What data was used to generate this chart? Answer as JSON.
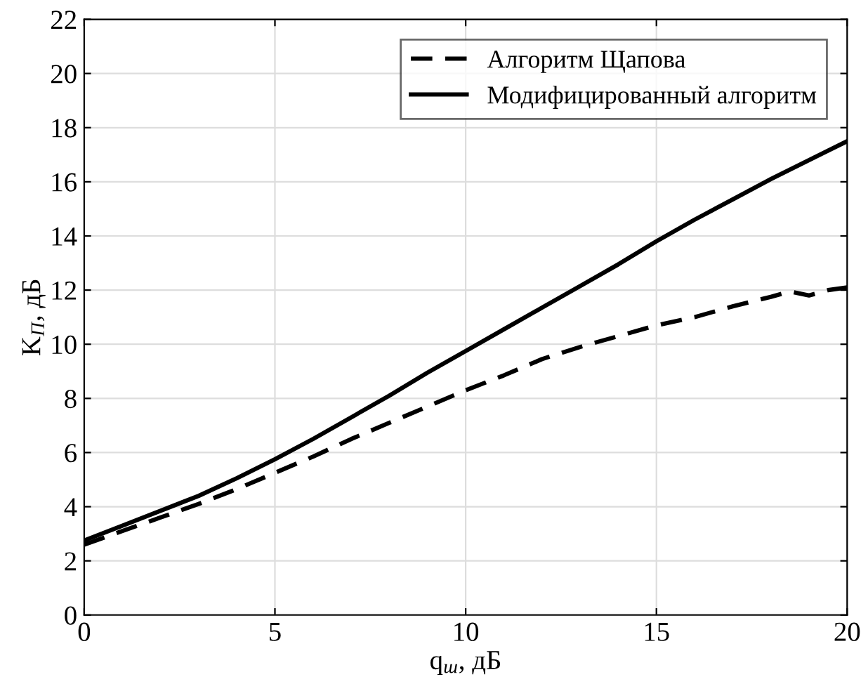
{
  "chart_data": {
    "type": "line",
    "xlabel": "q$_{ш}$, дБ",
    "ylabel": "K$_{П}$, дБ",
    "x": [
      0,
      1,
      2,
      3,
      4,
      5,
      6,
      7,
      8,
      9,
      10,
      11,
      12,
      13,
      14,
      15,
      16,
      17,
      18,
      18.5,
      19,
      19.5,
      20
    ],
    "series": [
      {
        "name": "Алгоритм Щапова",
        "color": "#000000",
        "line_style": "dashed",
        "values": [
          2.6,
          3.1,
          3.6,
          4.1,
          4.65,
          5.25,
          5.85,
          6.5,
          7.1,
          7.7,
          8.3,
          8.85,
          9.45,
          9.9,
          10.3,
          10.7,
          11.0,
          11.4,
          11.75,
          11.95,
          11.8,
          12.0,
          12.1
        ]
      },
      {
        "name": "Модифицированный алгоритм",
        "color": "#000000",
        "line_style": "solid",
        "values": [
          2.75,
          3.3,
          3.85,
          4.4,
          5.05,
          5.75,
          6.5,
          7.3,
          8.1,
          8.95,
          9.75,
          10.55,
          11.35,
          12.15,
          12.95,
          13.8,
          14.6,
          15.35,
          16.1,
          16.45,
          16.8,
          17.15,
          17.5
        ]
      }
    ],
    "xlim": [
      0,
      20
    ],
    "xticks": [
      0,
      5,
      10,
      15,
      20
    ],
    "ylim": [
      0,
      22
    ],
    "yticks": [
      0,
      2,
      4,
      6,
      8,
      10,
      12,
      14,
      16,
      18,
      20,
      22
    ],
    "grid": true,
    "legend": "top right"
  }
}
